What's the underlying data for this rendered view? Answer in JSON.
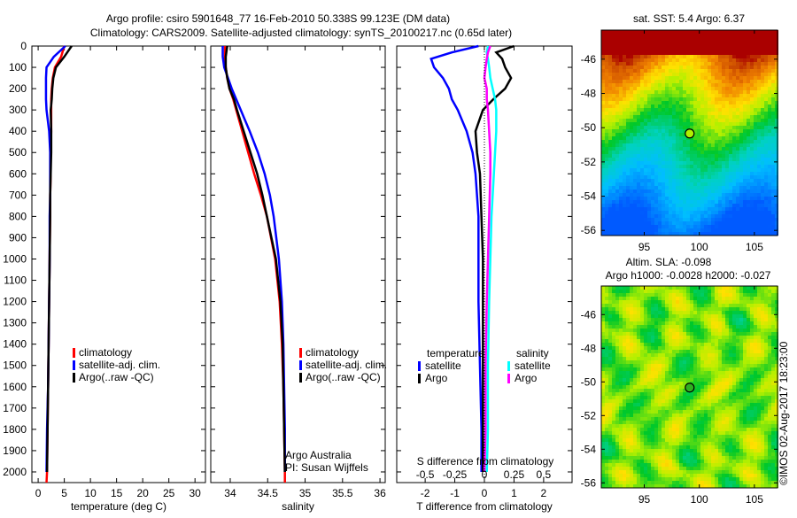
{
  "title_line1": "Argo profile: csiro 5901648_77 16-Feb-2010 50.338S 99.123E (DM data)",
  "title_line2": "Climatology: CARS2009. Satellite-adjusted climatology: synTS_20100217.nc (0.65d later)",
  "copyright": "©IMOS 02-Aug-2017 18:23:00",
  "colors": {
    "climatology": "#ff0000",
    "satellite": "#0000ff",
    "argo": "#000000",
    "sal_satellite": "#00ffff",
    "sal_argo": "#ff00ff"
  },
  "chart_data": [
    {
      "type": "line",
      "xlabel": "temperature (deg C)",
      "ylabel": "",
      "xlim": [
        -1.2,
        32
      ],
      "ylim": [
        2050,
        0
      ],
      "xticks": [
        "0",
        "5",
        "10",
        "15",
        "20",
        "25",
        "30"
      ],
      "xtickvals": [
        0,
        5,
        10,
        15,
        20,
        25,
        30
      ],
      "yticks": [
        "0",
        "100",
        "200",
        "300",
        "400",
        "500",
        "600",
        "700",
        "800",
        "900",
        "1000",
        "1100",
        "1200",
        "1300",
        "1400",
        "1500",
        "1600",
        "1700",
        "1800",
        "1900",
        "2000"
      ],
      "depth": [
        0,
        50,
        100,
        150,
        200,
        250,
        300,
        400,
        500,
        600,
        700,
        800,
        1000,
        1200,
        1400,
        1600,
        1800,
        2000,
        2050
      ],
      "series": [
        {
          "name": "climatology",
          "values": [
            5.0,
            4.4,
            3.2,
            2.8,
            2.6,
            2.5,
            2.5,
            2.5,
            2.4,
            2.4,
            2.3,
            2.3,
            2.2,
            2.1,
            2.0,
            1.9,
            1.8,
            1.7,
            1.6
          ]
        },
        {
          "name": "satellite-adj. clim.",
          "values": [
            5.2,
            3.0,
            1.6,
            1.5,
            1.5,
            1.5,
            1.6,
            2.1,
            2.3,
            2.3,
            2.3,
            2.2,
            2.2,
            2.1,
            2.0,
            1.9,
            1.7,
            1.6
          ]
        },
        {
          "name": "Argo(..raw -QC)",
          "values": [
            6.4,
            5.0,
            3.4,
            2.9,
            2.7,
            2.6,
            2.4,
            2.5,
            2.5,
            2.4,
            2.3,
            2.3,
            2.2,
            2.1,
            2.0,
            1.9,
            1.8,
            1.7
          ]
        }
      ],
      "legend": [
        "climatology",
        "satellite-adj. clim.",
        "Argo(..raw -QC)"
      ]
    },
    {
      "type": "line",
      "xlabel": "salinity",
      "xlim": [
        33.74,
        36.07
      ],
      "ylim": [
        2050,
        0
      ],
      "xticks": [
        "34",
        "34.5",
        "35",
        "35.5",
        "36"
      ],
      "xtickvals": [
        34,
        34.5,
        35,
        35.5,
        36
      ],
      "depth": [
        0,
        50,
        100,
        150,
        200,
        250,
        300,
        400,
        500,
        600,
        700,
        800,
        1000,
        1200,
        1400,
        1600,
        1800,
        2000,
        2050
      ],
      "series": [
        {
          "name": "climatology",
          "values": [
            33.93,
            33.93,
            33.94,
            33.96,
            33.99,
            34.04,
            34.08,
            34.16,
            34.24,
            34.32,
            34.41,
            34.49,
            34.6,
            34.66,
            34.69,
            34.71,
            34.72,
            34.73,
            34.73
          ]
        },
        {
          "name": "satellite-adj. clim.",
          "values": [
            33.9,
            33.9,
            33.92,
            33.97,
            34.02,
            34.08,
            34.14,
            34.26,
            34.37,
            34.46,
            34.53,
            34.58,
            34.65,
            34.69,
            34.71,
            34.72,
            34.73,
            34.73
          ]
        },
        {
          "name": "Argo(..raw -QC)",
          "values": [
            33.96,
            33.94,
            33.94,
            33.96,
            33.99,
            34.05,
            34.09,
            34.18,
            34.27,
            34.36,
            34.43,
            34.49,
            34.61,
            34.67,
            34.7,
            34.71,
            34.72,
            34.73
          ]
        }
      ],
      "legend": [
        "climatology",
        "satellite-adj. clim.",
        "Argo(..raw -QC)"
      ],
      "note1": "Argo Australia",
      "note2": "PI: Susan Wijffels"
    },
    {
      "type": "line",
      "xlabel": "T difference from climatology",
      "x2label": "S difference from climatology",
      "xlim": [
        -2.96,
        2.96
      ],
      "ylim": [
        2050,
        0
      ],
      "xticks": [
        "-2",
        "-1",
        "0",
        "1",
        "2"
      ],
      "xtickvals": [
        -2,
        -1,
        0,
        1,
        2
      ],
      "x2ticks": [
        "-0.5",
        "-0.25",
        "0",
        "0.25",
        "0.5"
      ],
      "x2tickvals": [
        -0.5,
        -0.25,
        0,
        0.25,
        0.5
      ],
      "depth": [
        0,
        30,
        60,
        100,
        150,
        200,
        250,
        300,
        400,
        500,
        600,
        800,
        1000,
        1200,
        1500,
        1800,
        2000
      ],
      "series": [
        {
          "name": "temperature satellite",
          "values": [
            -0.2,
            -1.1,
            -1.8,
            -1.7,
            -1.4,
            -1.2,
            -1.1,
            -0.9,
            -0.6,
            -0.4,
            -0.3,
            -0.2,
            -0.2,
            -0.2,
            -0.15,
            -0.1,
            -0.1
          ]
        },
        {
          "name": "temperature Argo",
          "values": [
            1.0,
            0.4,
            0.6,
            0.7,
            0.9,
            0.7,
            0.3,
            -0.05,
            -0.3,
            -0.25,
            -0.15,
            -0.1,
            -0.05,
            -0.05,
            -0.05,
            -0.05,
            -0.05
          ]
        },
        {
          "name": "salinity satellite",
          "values": [
            0.03,
            0.02,
            0.03,
            0.04,
            0.05,
            0.07,
            0.09,
            0.1,
            0.1,
            0.09,
            0.08,
            0.06,
            0.05,
            0.04,
            0.03,
            0.03,
            0.02
          ]
        },
        {
          "name": "salinity Argo",
          "values": [
            0.05,
            0.03,
            0.02,
            0.01,
            0.0,
            0.02,
            0.02,
            0.03,
            0.04,
            0.05,
            0.05,
            0.04,
            0.03,
            0.02,
            0.01,
            0.01,
            0.0
          ]
        }
      ],
      "legend_t_title": "temperature",
      "legend_s_title": "salinity",
      "legend_sat": "satellite",
      "legend_argo": "Argo"
    },
    {
      "type": "heatmap",
      "title": "sat. SST: 5.4 Argo: 6.37",
      "xlim": [
        91.1,
        107.1
      ],
      "ylim": [
        -56.3,
        -44.3
      ],
      "xticks": [
        "95",
        "100",
        "105"
      ],
      "xtickvals": [
        95,
        100,
        105
      ],
      "yticks": [
        "-46",
        "-48",
        "-50",
        "-52",
        "-54",
        "-56"
      ],
      "ytickvals": [
        -46,
        -48,
        -50,
        -52,
        -54,
        -56
      ],
      "marker": {
        "lon": 99.123,
        "lat": -50.338
      }
    },
    {
      "type": "heatmap",
      "title": "Altim. SLA: -0.098",
      "subtitle": "Argo h1000: -0.0028 h2000: -0.027",
      "xlim": [
        91.1,
        107.1
      ],
      "ylim": [
        -56.3,
        -44.3
      ],
      "xticks": [
        "95",
        "100",
        "105"
      ],
      "xtickvals": [
        95,
        100,
        105
      ],
      "yticks": [
        "-46",
        "-48",
        "-50",
        "-52",
        "-54",
        "-56"
      ],
      "ytickvals": [
        -46,
        -48,
        -50,
        -52,
        -54,
        -56
      ],
      "marker": {
        "lon": 99.123,
        "lat": -50.338
      }
    }
  ]
}
